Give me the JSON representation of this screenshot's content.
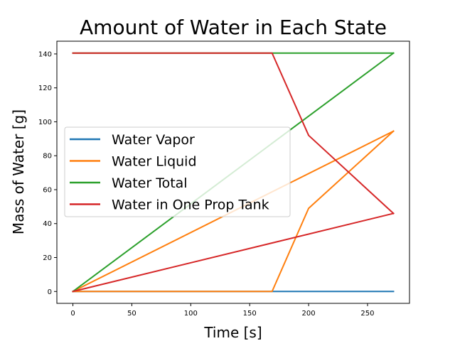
{
  "chart_data": {
    "type": "line",
    "title": "Amount of Water in Each State",
    "xlabel": "Time [s]",
    "ylabel": "Mass of Water [g]",
    "xlim": [
      -13.6,
      285.6
    ],
    "ylim": [
      -7,
      147.5
    ],
    "xticks": [
      0,
      50,
      100,
      150,
      200,
      250
    ],
    "yticks": [
      0,
      20,
      40,
      60,
      80,
      100,
      120,
      140
    ],
    "grid": false,
    "legend_position": "center-left",
    "series": [
      {
        "name": "Water Vapor",
        "color": "#1f77b4",
        "segments": [
          [
            [
              0,
              0
            ],
            [
              169,
              0
            ],
            [
              200,
              0
            ],
            [
              272,
              0
            ]
          ]
        ]
      },
      {
        "name": "Water Liquid",
        "color": "#ff7f0e",
        "segments": [
          [
            [
              0,
              0
            ],
            [
              272,
              94.5
            ]
          ],
          [
            [
              0,
              0
            ],
            [
              169,
              0
            ],
            [
              200,
              49
            ],
            [
              272,
              94.5
            ]
          ]
        ]
      },
      {
        "name": "Water Total",
        "color": "#2ca02c",
        "segments": [
          [
            [
              0,
              0
            ],
            [
              272,
              140.5
            ]
          ],
          [
            [
              0,
              140.5
            ],
            [
              272,
              140.5
            ]
          ]
        ]
      },
      {
        "name": "Water in One Prop Tank",
        "color": "#d62728",
        "segments": [
          [
            [
              0,
              0
            ],
            [
              272,
              46
            ]
          ],
          [
            [
              0,
              140.5
            ],
            [
              169,
              140.5
            ],
            [
              200,
              92
            ],
            [
              272,
              46
            ]
          ]
        ]
      }
    ]
  }
}
